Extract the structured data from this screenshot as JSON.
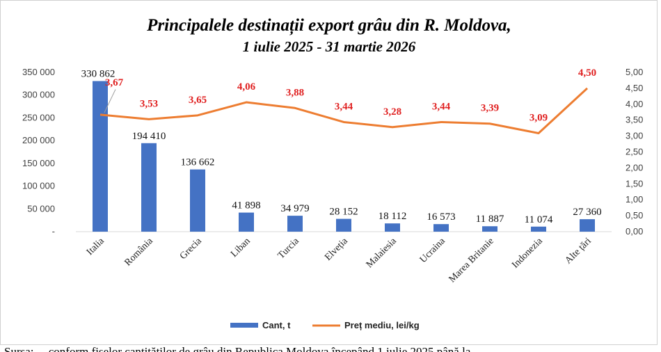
{
  "chart_data": {
    "type": "bar+line",
    "title": "Principalele destinații export grâu din R. Moldova,",
    "subtitle": "1 iulie 2025 - 31 martie 2026",
    "categories": [
      "Italia",
      "România",
      "Grecia",
      "Liban",
      "Turcia",
      "Elveția",
      "Malaiesia",
      "Ucraina",
      "Marea Britanie",
      "Indonezia",
      "Alte țări"
    ],
    "series": [
      {
        "name": "Cant, t",
        "type": "bar",
        "axis": "left",
        "color": "#4472c4",
        "values": [
          330862,
          194410,
          136662,
          41898,
          34979,
          28152,
          18112,
          16573,
          11887,
          11074,
          27360
        ],
        "labels": [
          "330 862",
          "194 410",
          "136 662",
          "41 898",
          "34 979",
          "28 152",
          "18 112",
          "16 573",
          "11 887",
          "11 074",
          "27 360"
        ]
      },
      {
        "name": "Preț mediu, lei/kg",
        "type": "line",
        "axis": "right",
        "color": "#ed7d31",
        "values": [
          3.67,
          3.53,
          3.65,
          4.06,
          3.88,
          3.44,
          3.28,
          3.44,
          3.39,
          3.09,
          4.5
        ],
        "labels": [
          "3,67",
          "3,53",
          "3,65",
          "4,06",
          "3,88",
          "3,44",
          "3,28",
          "3,44",
          "3,39",
          "3,09",
          "4,50"
        ]
      }
    ],
    "y_left": {
      "min": 0,
      "max": 350000,
      "ticks": [
        0,
        50000,
        100000,
        150000,
        200000,
        250000,
        300000,
        350000
      ],
      "tick_labels": [
        "-",
        "50 000",
        "100 000",
        "150 000",
        "200 000",
        "250 000",
        "300 000",
        "350 000"
      ]
    },
    "y_right": {
      "min": 0,
      "max": 5,
      "ticks": [
        0,
        0.5,
        1,
        1.5,
        2,
        2.5,
        3,
        3.5,
        4,
        4.5,
        5
      ],
      "tick_labels": [
        "0,00",
        "0,50",
        "1,00",
        "1,50",
        "2,00",
        "2,50",
        "3,00",
        "3,50",
        "4,00",
        "4,50",
        "5,00"
      ]
    },
    "legend": {
      "position": "bottom",
      "entries": [
        "Cant, t",
        "Preț mediu, lei/kg"
      ]
    },
    "grid": false
  },
  "footer": {
    "text": "Sursa: ...  conform fișelor cantităților de grâu din Republica Moldova începând 1 iulie 2025 până la..."
  }
}
